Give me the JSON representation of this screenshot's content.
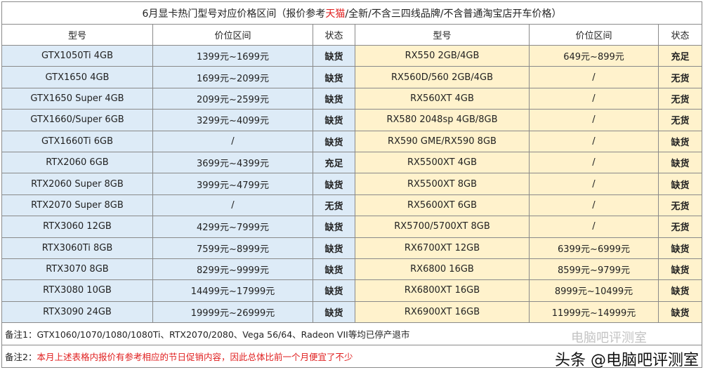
{
  "title_prefix": "6月显卡热门型号对应价格区间（报价参考",
  "title_highlight": "天猫",
  "title_suffix": "/全新/不含三四线品牌/不含普通淘宝店开车价格）",
  "headers": [
    "型号",
    "价位区间",
    "状态",
    "型号",
    "价位区间",
    "状态"
  ],
  "rows": [
    [
      "GTX1050Ti 4GB",
      "1399元~1699元",
      "缺货",
      "RX550 2GB/4GB",
      "649元~899元",
      "充足"
    ],
    [
      "GTX1650 4GB",
      "1699元~2099元",
      "缺货",
      "RX560D/560 2GB/4GB",
      "/",
      "无货"
    ],
    [
      "GTX1650 Super 4GB",
      "2099元~2599元",
      "缺货",
      "RX560XT 4GB",
      "/",
      "无货"
    ],
    [
      "GTX1660/Super 6GB",
      "3299元~4099元",
      "缺货",
      "RX580 2048sp 4GB/8GB",
      "/",
      "无货"
    ],
    [
      "GTX1660Ti 6GB",
      "/",
      "缺货",
      "RX590 GME/RX590 8GB",
      "/",
      "缺货"
    ],
    [
      "RTX2060 6GB",
      "3699元~4399元",
      "充足",
      "RX5500XT 4GB",
      "/",
      "缺货"
    ],
    [
      "RTX2060 Super 8GB",
      "3999元~4799元",
      "缺货",
      "RX5500XT 8GB",
      "/",
      "缺货"
    ],
    [
      "RTX2070 Super 8GB",
      "/",
      "无货",
      "RX5600XT 6GB",
      "/",
      "无货"
    ],
    [
      "RTX3060 12GB",
      "4299元~7999元",
      "缺货",
      "RX5700/5700XT 8GB",
      "/",
      "无货"
    ],
    [
      "RTX3060Ti 8GB",
      "7599元~8999元",
      "缺货",
      "RX6700XT 12GB",
      "6399元~6999元",
      "缺货"
    ],
    [
      "RTX3070 8GB",
      "8299元~9999元",
      "缺货",
      "RX6800 16GB",
      "8599元~9799元",
      "缺货"
    ],
    [
      "RTX3080 10GB",
      "14499元~17999元",
      "缺货",
      "RX6800XT 16GB",
      "8999元~10499元",
      "缺货"
    ],
    [
      "RTX3090 24GB",
      "19999元~26999元",
      "缺货",
      "RX6900XT 16GB",
      "11999元~14999元",
      "缺货"
    ]
  ],
  "note1_label": "备注1：",
  "note1_text": "GTX1060/1070/1080/1080Ti、RTX2070/2080、Vega 56/64、Radeon VII等均已停产退市",
  "note2_label": "备注2：",
  "note2_text": "本月上述表格内报价有参考相应的节日促销内容，因此总体比前一个月便宜了不少",
  "watermark": "头条 @电脑吧评测室",
  "watermark2": "电脑吧评测室",
  "colors": {
    "nvidia_bg": "#ddebf7",
    "amd_bg": "#fff2cc",
    "highlight": "#e02020"
  }
}
